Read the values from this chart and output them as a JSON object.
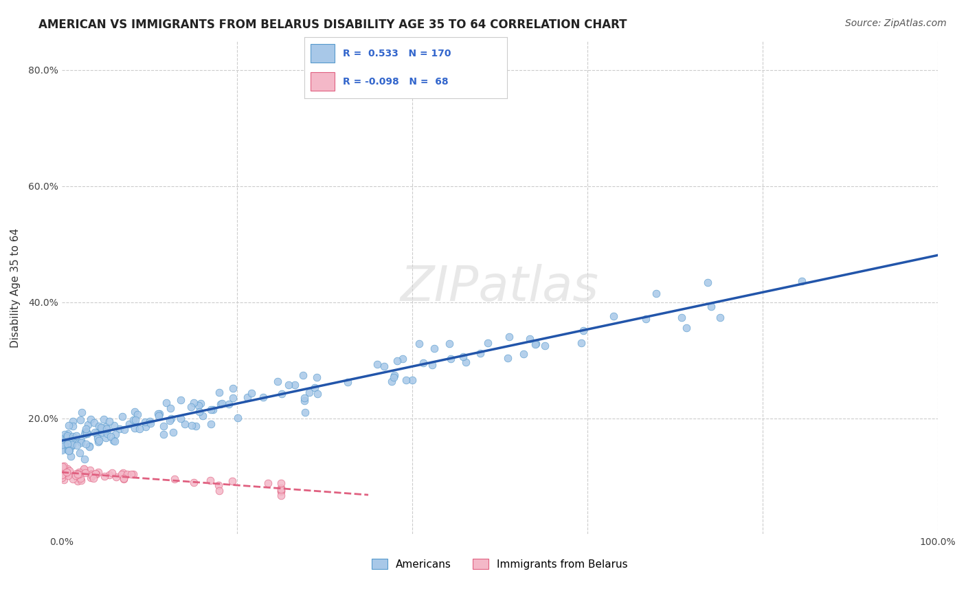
{
  "title": "AMERICAN VS IMMIGRANTS FROM BELARUS DISABILITY AGE 35 TO 64 CORRELATION CHART",
  "source": "Source: ZipAtlas.com",
  "xlabel": "",
  "ylabel": "Disability Age 35 to 64",
  "xlim": [
    0.0,
    1.0
  ],
  "ylim": [
    0.0,
    0.85
  ],
  "x_ticks": [
    0.0,
    0.2,
    0.4,
    0.6,
    0.8,
    1.0
  ],
  "x_tick_labels": [
    "0.0%",
    "",
    "",
    "",
    "",
    "100.0%"
  ],
  "y_ticks": [
    0.0,
    0.2,
    0.4,
    0.6,
    0.8
  ],
  "y_tick_labels": [
    "",
    "20.0%",
    "40.0%",
    "60.0%",
    "80.0%"
  ],
  "american_r": 0.533,
  "american_n": 170,
  "belarus_r": -0.098,
  "belarus_n": 68,
  "american_color": "#a8c8e8",
  "american_edge_color": "#5599cc",
  "belarus_color": "#f4b8c8",
  "belarus_edge_color": "#e06080",
  "american_line_color": "#2255aa",
  "belarus_line_color": "#e06080",
  "watermark": "ZIPatlas",
  "background_color": "#ffffff",
  "grid_color": "#cccccc",
  "legend_r_color": "#3366cc",
  "american_scatter_seed": 42,
  "belarus_scatter_seed": 7
}
